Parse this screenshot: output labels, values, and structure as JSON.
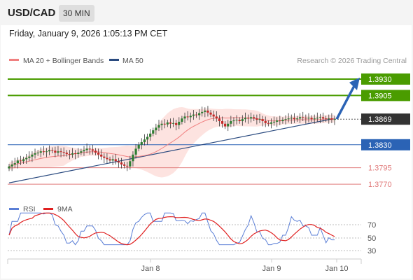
{
  "header": {
    "pair": "USD/CAD",
    "timeframe": "30 MIN"
  },
  "datetime": "Friday, January 9, 2026 1:05:13 PM CET",
  "legend": {
    "ma20": {
      "label": "MA 20 + Bollinger Bands",
      "color": "#f08080"
    },
    "ma50": {
      "label": "MA 50",
      "color": "#2a4a7f"
    },
    "source": "Research © 2026 Trading Central"
  },
  "rsi_legend": {
    "rsi": {
      "label": "RSI",
      "color": "#5b7fd6"
    },
    "ma": {
      "label": "9MA",
      "color": "#e02020"
    }
  },
  "colors": {
    "resistance": "#4a9c00",
    "pivot": "#2b63b5",
    "support": "#e07a7a",
    "current": "#333333",
    "up": "#2e7d32",
    "down": "#c62828",
    "band": "#fde3e0"
  },
  "chart_data": [
    {
      "type": "candlestick",
      "y_range": [
        1.3752,
        1.3947
      ],
      "levels": [
        {
          "label": "1.3930",
          "value": 1.393,
          "kind": "resistance"
        },
        {
          "label": "1.3905",
          "value": 1.3905,
          "kind": "resistance"
        },
        {
          "label": "1.3869",
          "value": 1.3869,
          "kind": "current"
        },
        {
          "label": "1.3830",
          "value": 1.383,
          "kind": "pivot"
        },
        {
          "label": "1.3795",
          "value": 1.3795,
          "kind": "support"
        },
        {
          "label": "1.3770",
          "value": 1.377,
          "kind": "support"
        }
      ],
      "x_labels": [
        "Jan 8",
        "Jan 9",
        "Jan 10"
      ],
      "close": [
        1.3797,
        1.38,
        1.3802,
        1.3806,
        1.3805,
        1.3808,
        1.381,
        1.3812,
        1.3815,
        1.3817,
        1.3818,
        1.382,
        1.3819,
        1.382,
        1.3822,
        1.3821,
        1.3818,
        1.382,
        1.3819,
        1.3818,
        1.3816,
        1.3815,
        1.3817,
        1.3816,
        1.3818,
        1.382,
        1.3822,
        1.3824,
        1.3823,
        1.3821,
        1.3818,
        1.3815,
        1.3812,
        1.381,
        1.3808,
        1.3806,
        1.3808,
        1.3805,
        1.3803,
        1.38,
        1.3798,
        1.3797,
        1.3805,
        1.3815,
        1.3824,
        1.383,
        1.3834,
        1.3838,
        1.3842,
        1.3847,
        1.3852,
        1.3856,
        1.386,
        1.3862,
        1.3861,
        1.3864,
        1.3862,
        1.3863,
        1.386,
        1.3865,
        1.387,
        1.3873,
        1.3872,
        1.3874,
        1.3876,
        1.3875,
        1.3878,
        1.388,
        1.3882,
        1.3879,
        1.3876,
        1.3873,
        1.387,
        1.3866,
        1.3862,
        1.3858,
        1.3862,
        1.3866,
        1.3867,
        1.3868,
        1.3866,
        1.3869,
        1.3871,
        1.387,
        1.3872,
        1.387,
        1.3868,
        1.3869,
        1.3866,
        1.3863,
        1.3862,
        1.3864,
        1.3865,
        1.3867,
        1.3866,
        1.3868,
        1.3869,
        1.387,
        1.3871,
        1.3869,
        1.387,
        1.3872,
        1.3871,
        1.387,
        1.3871,
        1.3869,
        1.387,
        1.3871,
        1.3872,
        1.387,
        1.3869,
        1.387,
        1.3868,
        1.3869
      ],
      "ma50": {
        "start": 1.3772,
        "end": 1.387
      },
      "rsi": {
        "y_ticks": [
          70,
          50,
          30
        ],
        "range": [
          20,
          80
        ]
      }
    }
  ],
  "rsi_ticks": {
    "t70": "70",
    "t50": "50",
    "t30": "30"
  }
}
